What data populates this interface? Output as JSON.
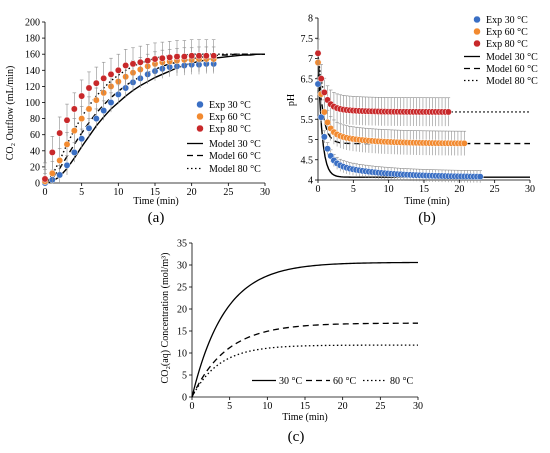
{
  "chart_data": [
    {
      "type": "scatter",
      "panel_label": "(a)",
      "xlabel": "Time (min)",
      "ylabel": "CO₂ Outflow (mL/min)",
      "xlim": [
        0,
        30
      ],
      "ylim": [
        0,
        200
      ],
      "xticks": [
        "0",
        "5",
        "10",
        "15",
        "20",
        "25",
        "30"
      ],
      "yticks": [
        "0",
        "20",
        "40",
        "60",
        "80",
        "100",
        "120",
        "140",
        "160",
        "180",
        "200"
      ],
      "legend_position": "right",
      "colors": {
        "exp30": "#3a6fc4",
        "exp60": "#f28a30",
        "exp80": "#c8282a",
        "model": "#000000"
      },
      "series": [
        {
          "name": "Exp 30 °C",
          "kind": "scatter",
          "error": 12,
          "x": [
            0,
            1,
            2,
            3,
            4,
            5,
            6,
            7,
            8,
            9,
            10,
            11,
            12,
            13,
            14,
            15,
            16,
            17,
            18,
            19,
            20,
            21,
            22,
            23
          ],
          "y": [
            0,
            4,
            10,
            22,
            38,
            55,
            68,
            80,
            90,
            100,
            110,
            118,
            125,
            130,
            135,
            139,
            142,
            144,
            145,
            146,
            147,
            147,
            148,
            148
          ]
        },
        {
          "name": "Exp 60 °C",
          "kind": "scatter",
          "error": 15,
          "x": [
            0,
            1,
            2,
            3,
            4,
            5,
            6,
            7,
            8,
            9,
            10,
            11,
            12,
            13,
            14,
            15,
            16,
            17,
            18,
            19,
            20,
            21,
            22,
            23
          ],
          "y": [
            2,
            12,
            28,
            48,
            65,
            80,
            92,
            103,
            112,
            120,
            126,
            132,
            137,
            141,
            145,
            148,
            150,
            151,
            152,
            153,
            153,
            154,
            154,
            154
          ]
        },
        {
          "name": "Exp 80 °C",
          "kind": "scatter",
          "error": 20,
          "x": [
            0,
            1,
            2,
            3,
            4,
            5,
            6,
            7,
            8,
            9,
            10,
            11,
            12,
            13,
            14,
            15,
            16,
            17,
            18,
            19,
            20,
            21,
            22,
            23
          ],
          "y": [
            5,
            38,
            62,
            78,
            92,
            108,
            118,
            124,
            130,
            135,
            140,
            146,
            148,
            150,
            152,
            154,
            155,
            156,
            157,
            157,
            158,
            158,
            158,
            158
          ]
        },
        {
          "name": "Model 30 °C",
          "kind": "line",
          "dash": "solid",
          "x": [
            0,
            1,
            2,
            3,
            4,
            5,
            6,
            7,
            8,
            9,
            10,
            11,
            12,
            13,
            14,
            15,
            16,
            17,
            18,
            19,
            20,
            21,
            22,
            23,
            24,
            25,
            26,
            27,
            28,
            29,
            30
          ],
          "y": [
            0,
            2,
            8,
            18,
            31,
            45,
            58,
            71,
            82,
            92,
            100,
            108,
            115,
            121,
            126,
            131,
            135,
            139,
            143,
            146,
            149,
            151,
            153,
            155,
            156,
            157,
            158,
            159,
            159,
            160,
            160
          ]
        },
        {
          "name": "Model 60 °C",
          "kind": "line",
          "dash": "dash",
          "x": [
            0,
            1,
            2,
            3,
            4,
            5,
            6,
            7,
            8,
            9,
            10,
            11,
            12,
            13,
            14,
            15,
            16,
            17,
            18,
            19,
            20,
            21,
            22,
            23,
            24,
            25,
            26,
            27,
            28,
            29,
            30
          ],
          "y": [
            0,
            6,
            18,
            33,
            48,
            62,
            75,
            87,
            97,
            106,
            114,
            121,
            127,
            132,
            137,
            141,
            145,
            148,
            150,
            152,
            154,
            156,
            157,
            158,
            159,
            159,
            160,
            160,
            160,
            160,
            160
          ]
        },
        {
          "name": "Model 80 °C",
          "kind": "line",
          "dash": "dot",
          "x": [
            0,
            1,
            2,
            3,
            4,
            5,
            6,
            7,
            8,
            9,
            10,
            11,
            12,
            13,
            14,
            15,
            16,
            17,
            18,
            19,
            20,
            21,
            22,
            23,
            24,
            25,
            26,
            27,
            28,
            29,
            30
          ],
          "y": [
            0,
            10,
            28,
            48,
            66,
            82,
            96,
            108,
            118,
            127,
            134,
            140,
            145,
            149,
            152,
            155,
            157,
            158,
            159,
            159,
            160,
            160,
            160,
            160,
            160,
            160,
            160,
            160,
            160,
            160,
            160
          ]
        }
      ]
    },
    {
      "type": "scatter",
      "panel_label": "(b)",
      "xlabel": "Time (min)",
      "ylabel": "pH",
      "xlim": [
        0,
        30
      ],
      "ylim": [
        4,
        8
      ],
      "xticks": [
        "0",
        "5",
        "10",
        "15",
        "20",
        "25",
        "30"
      ],
      "yticks": [
        "4",
        "4.5",
        "5",
        "5.5",
        "6",
        "6.5",
        "7",
        "7.5",
        "8"
      ],
      "legend_position": "top-right",
      "colors": {
        "exp30": "#3a6fc4",
        "exp60": "#f28a30",
        "exp80": "#c8282a",
        "model": "#000000"
      },
      "series": [
        {
          "name": "Exp 30 °C",
          "kind": "scatter",
          "error": 0.15,
          "x_end": 23,
          "formula": {
            "a": 4.07,
            "b": 1.9,
            "k": 1.2,
            "c": 0.4,
            "k2": 0.15
          }
        },
        {
          "name": "Exp 60 °C",
          "kind": "scatter",
          "error": 0.3,
          "x_end": 21,
          "formula": {
            "a": 4.9,
            "b": 1.7,
            "k": 1.3,
            "c": 0.3,
            "k2": 0.2
          }
        },
        {
          "name": "Exp 80 °C",
          "kind": "scatter",
          "error": 0.35,
          "x_end": 18.5,
          "formula": {
            "a": 5.68,
            "b": 1.3,
            "k": 1.4,
            "c": 0.15,
            "k2": 0.3
          }
        },
        {
          "name": "Model 30 °C",
          "kind": "line",
          "dash": "solid",
          "plateau": 4.07,
          "start": 7.1,
          "k": 1.8
        },
        {
          "name": "Model 60 °C",
          "kind": "line",
          "dash": "dash",
          "plateau": 4.9,
          "start": 7.1,
          "k": 1.5
        },
        {
          "name": "Model 80 °C",
          "kind": "line",
          "dash": "dot",
          "plateau": 5.68,
          "start": 7.1,
          "k": 1.3
        }
      ]
    },
    {
      "type": "line",
      "panel_label": "(c)",
      "xlabel": "Time (min)",
      "ylabel": "CO₂(aq) Concentration (mol/m³)",
      "xlim": [
        0,
        30
      ],
      "ylim": [
        0,
        35
      ],
      "xticks": [
        "0",
        "5",
        "10",
        "15",
        "20",
        "25",
        "30"
      ],
      "yticks": [
        "0",
        "5",
        "10",
        "15",
        "20",
        "25",
        "30",
        "35"
      ],
      "legend_position": "bottom",
      "series": [
        {
          "name": "30 °C",
          "dash": "solid",
          "plateau": 30.6,
          "k": 0.23
        },
        {
          "name": "60 °C",
          "dash": "dash",
          "plateau": 16.8,
          "k": 0.22
        },
        {
          "name": "80 °C",
          "dash": "dot",
          "plateau": 11.8,
          "k": 0.28
        }
      ]
    }
  ]
}
